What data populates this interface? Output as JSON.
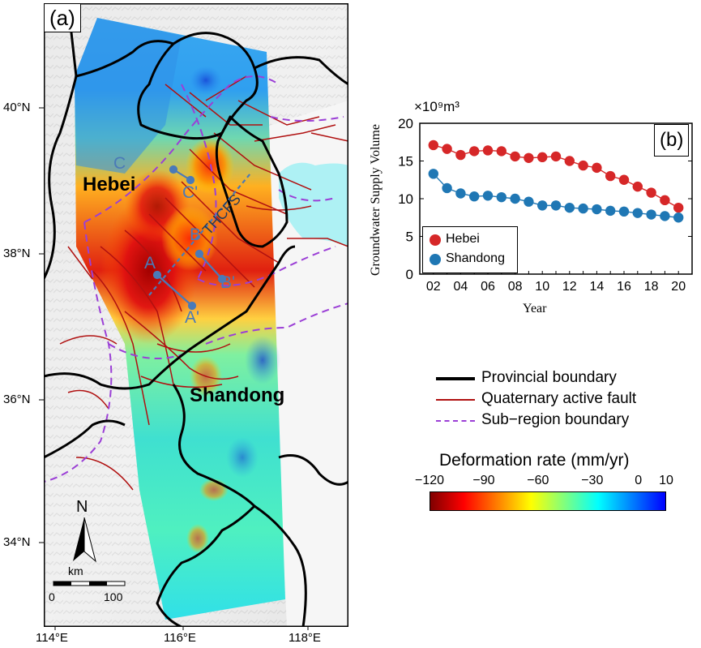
{
  "map": {
    "panel_label": "(a)",
    "lat_ticks": [
      "40°N",
      "38°N",
      "36°N",
      "34°N"
    ],
    "lon_ticks": [
      "114°E",
      "116°E",
      "118°E"
    ],
    "provinces": {
      "hebei": "Hebei",
      "shandong": "Shandong"
    },
    "profile_points": {
      "a": "A",
      "a_prime": "A'",
      "b": "B",
      "b_prime": "B'",
      "c": "C",
      "c_prime": "C'"
    },
    "fault_label": "THCFS",
    "north_arrow": "N",
    "scalebar": {
      "unit": "km",
      "start": "0",
      "end": "100"
    }
  },
  "legend": {
    "items": [
      {
        "label": "Provincial boundary",
        "color": "#000000",
        "style": "solid-thick"
      },
      {
        "label": "Quaternary active fault",
        "color": "#b01010",
        "style": "solid-thin"
      },
      {
        "label": "Sub−region boundary",
        "color": "#9b3fd6",
        "style": "dashed"
      }
    ]
  },
  "colorbar": {
    "title": "Deformation rate (mm/yr)",
    "ticks": [
      "−120",
      "−90",
      "−60",
      "−30",
      "0",
      "10"
    ],
    "tick_values": [
      -120,
      -90,
      -60,
      -30,
      0,
      10
    ],
    "range": [
      -120,
      10
    ],
    "colors": [
      "#7f0000",
      "#ff0000",
      "#ff7f00",
      "#ffff00",
      "#7fff7f",
      "#00ffff",
      "#0080ff",
      "#0000ff"
    ]
  },
  "chart_data": {
    "type": "line",
    "panel_label": "(b)",
    "ylabel": "Groundwater Supply Volume",
    "xlabel": "Year",
    "y_multiplier": "×10⁹m³",
    "x": [
      2,
      3,
      4,
      5,
      6,
      7,
      8,
      9,
      10,
      11,
      12,
      13,
      14,
      15,
      16,
      17,
      18,
      19,
      20
    ],
    "x_tick_values": [
      2,
      4,
      6,
      8,
      10,
      12,
      14,
      16,
      18,
      20
    ],
    "x_tick_labels": [
      "02",
      "04",
      "06",
      "08",
      "10",
      "12",
      "14",
      "16",
      "18",
      "20"
    ],
    "y_ticks": [
      0,
      5,
      10,
      15,
      20
    ],
    "xlim": [
      1,
      21
    ],
    "ylim": [
      0,
      20
    ],
    "legend_position": "bottom-left",
    "series": [
      {
        "name": "Hebei",
        "color": "#d62728",
        "values": [
          17.1,
          16.6,
          15.8,
          16.3,
          16.4,
          16.3,
          15.6,
          15.4,
          15.5,
          15.6,
          15.0,
          14.4,
          14.1,
          13.0,
          12.5,
          11.6,
          10.8,
          9.8,
          8.8
        ]
      },
      {
        "name": "Shandong",
        "color": "#1f77b4",
        "values": [
          13.3,
          11.4,
          10.7,
          10.3,
          10.4,
          10.2,
          10.0,
          9.6,
          9.1,
          9.1,
          8.8,
          8.7,
          8.6,
          8.4,
          8.3,
          8.1,
          7.9,
          7.7,
          7.5
        ]
      }
    ]
  }
}
